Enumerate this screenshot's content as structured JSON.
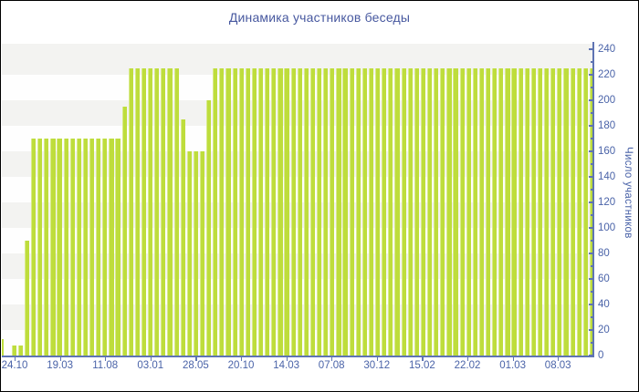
{
  "chart_data": {
    "type": "bar",
    "title": "Динамика участников беседы",
    "ylabel": "Число участников",
    "xlabel": "",
    "ylim": [
      0,
      240
    ],
    "y_tick_step": 20,
    "y_minor_tick_step": 10,
    "grid": "horizontal-bands",
    "legend": "none",
    "x_tick_labels": [
      "24.10",
      "19.03",
      "11.08",
      "03.01",
      "28.05",
      "20.10",
      "14.03",
      "07.08",
      "30.12",
      "15.02",
      "22.02",
      "01.03",
      "08.03"
    ],
    "values": [
      13,
      0,
      8,
      8,
      90,
      170,
      170,
      170,
      170,
      170,
      170,
      170,
      170,
      170,
      170,
      170,
      170,
      170,
      170,
      195,
      225,
      225,
      225,
      225,
      225,
      225,
      225,
      225,
      185,
      160,
      160,
      160,
      200,
      225,
      225,
      225,
      225,
      225,
      225,
      225,
      225,
      225,
      225,
      225,
      225,
      225,
      225,
      225,
      225,
      225,
      225,
      225,
      225,
      225,
      225,
      225,
      225,
      225,
      225,
      225,
      225,
      225,
      225,
      225,
      225,
      225,
      225,
      225,
      225,
      225,
      225,
      225,
      225,
      225,
      225,
      225,
      225,
      225,
      225,
      225,
      225,
      225,
      225,
      225,
      225,
      225,
      225,
      225,
      225,
      225,
      225,
      225
    ],
    "colors": {
      "bar": "#bedd3c",
      "bar_highlight": "#d8ea8a",
      "axis": "#5f74b3",
      "tick_text": "#4a63a8",
      "title_text": "#47589f",
      "band_gray": "#f3f3f1",
      "band_white": "#fefefe"
    }
  }
}
